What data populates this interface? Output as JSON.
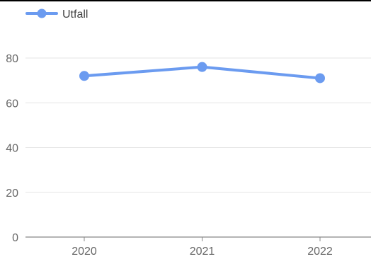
{
  "chart_data": {
    "type": "line",
    "categories": [
      "2020",
      "2021",
      "2022"
    ],
    "series": [
      {
        "name": "Utfall",
        "values": [
          72,
          76,
          71
        ]
      }
    ],
    "title": "",
    "xlabel": "",
    "ylabel": "",
    "ylim": [
      0,
      80
    ],
    "yticks": [
      0,
      20,
      40,
      60,
      80
    ],
    "grid": true,
    "legend": "top-left",
    "colors": {
      "series": "#6b9bf0",
      "grid": "#e6e6e6",
      "axis": "#888888",
      "tick_text": "#666666"
    }
  }
}
